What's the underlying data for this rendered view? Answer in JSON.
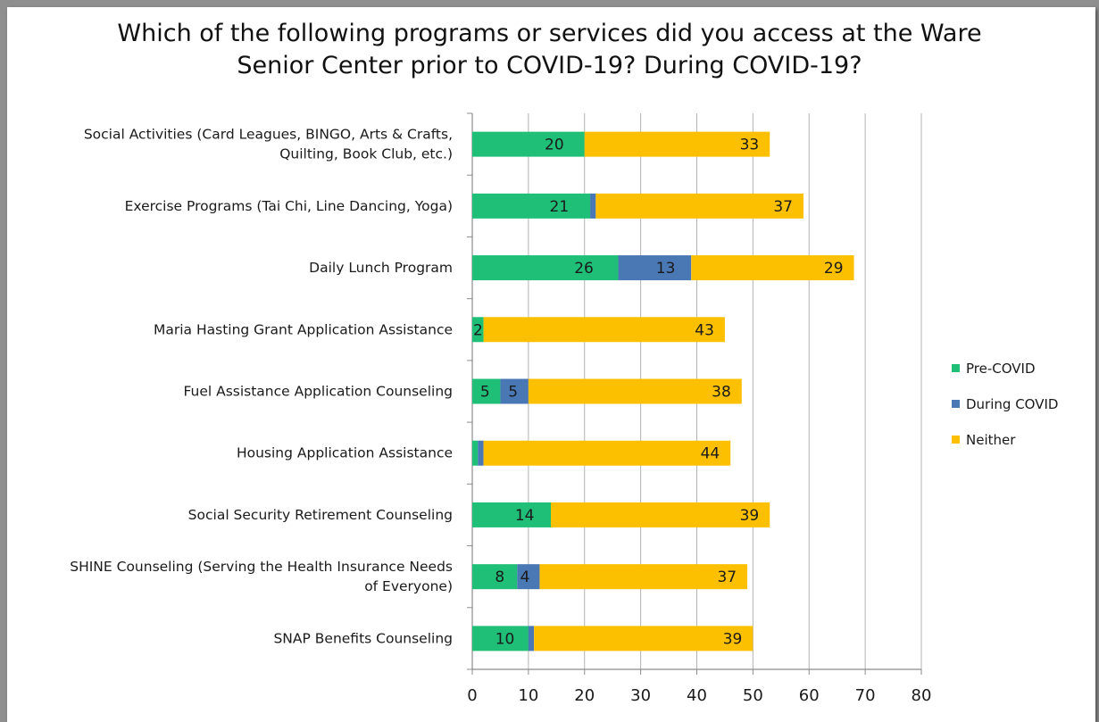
{
  "chart_data": {
    "type": "bar",
    "orientation": "horizontal",
    "stacked": true,
    "title": "Which of the following programs or services did you access at the Ware\nSenior Center prior to COVID-19? During COVID-19?",
    "categories": [
      [
        "Social Activities (Card Leagues, BINGO, Arts & Crafts,",
        "Quilting, Book Club, etc.)"
      ],
      [
        "Exercise Programs (Tai Chi, Line Dancing, Yoga)"
      ],
      [
        "Daily Lunch Program"
      ],
      [
        "Maria Hasting Grant Application Assistance"
      ],
      [
        "Fuel Assistance Application Counseling"
      ],
      [
        "Housing Application Assistance"
      ],
      [
        "Social Security Retirement Counseling"
      ],
      [
        "SHINE Counseling (Serving the Health Insurance Needs",
        "of Everyone)"
      ],
      [
        "SNAP Benefits Counseling"
      ]
    ],
    "series": [
      {
        "name": "Pre-COVID",
        "color": "#1fbf77",
        "values": [
          20,
          21,
          26,
          2,
          5,
          1,
          14,
          8,
          10
        ],
        "labels": [
          "20",
          "21",
          "26",
          "2",
          "5",
          "",
          "14",
          "8",
          "10"
        ]
      },
      {
        "name": "During COVID",
        "color": "#4a78b5",
        "values": [
          0,
          1,
          13,
          0,
          5,
          1,
          0,
          4,
          1
        ],
        "labels": [
          "",
          "",
          "13",
          "",
          "5",
          "",
          "",
          "4",
          ""
        ]
      },
      {
        "name": "Neither",
        "color": "#fdc000",
        "values": [
          33,
          37,
          29,
          43,
          38,
          44,
          39,
          37,
          39
        ],
        "labels": [
          "33",
          "37",
          "29",
          "43",
          "38",
          "44",
          "39",
          "37",
          "39"
        ]
      }
    ],
    "xlim": [
      0,
      80
    ],
    "xticks": [
      "0",
      "10",
      "20",
      "30",
      "40",
      "50",
      "60",
      "70",
      "80"
    ],
    "grid": "vertical",
    "legend": "right"
  }
}
